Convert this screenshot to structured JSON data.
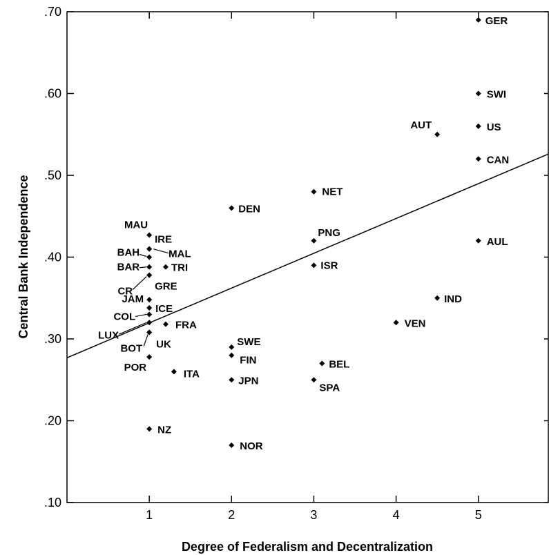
{
  "chart_data": {
    "type": "scatter",
    "xlabel": "Degree of Federalism and Decentralization",
    "ylabel": "Central Bank Independence",
    "xlim": [
      0,
      5.85
    ],
    "ylim": [
      0.1,
      0.7
    ],
    "xticks": [
      1,
      2,
      3,
      4,
      5
    ],
    "xtick_labels": [
      "1",
      "2",
      "3",
      "4",
      "5"
    ],
    "yticks": [
      0.1,
      0.2,
      0.3,
      0.4,
      0.5,
      0.6,
      0.7
    ],
    "ytick_labels": [
      ".10",
      ".20",
      ".30",
      ".40",
      ".50",
      ".60",
      ".70"
    ],
    "grid": false,
    "regression_line": {
      "x": [
        0,
        5.85
      ],
      "y": [
        0.277,
        0.526
      ]
    },
    "points": [
      {
        "label": "GER",
        "x": 5,
        "y": 0.69
      },
      {
        "label": "SWI",
        "x": 5,
        "y": 0.6
      },
      {
        "label": "US",
        "x": 5,
        "y": 0.56
      },
      {
        "label": "AUT",
        "x": 4.5,
        "y": 0.55
      },
      {
        "label": "CAN",
        "x": 5,
        "y": 0.52
      },
      {
        "label": "AUL",
        "x": 5,
        "y": 0.42
      },
      {
        "label": "IND",
        "x": 4.5,
        "y": 0.35
      },
      {
        "label": "VEN",
        "x": 4,
        "y": 0.32
      },
      {
        "label": "NET",
        "x": 3,
        "y": 0.48
      },
      {
        "label": "PNG",
        "x": 3,
        "y": 0.42
      },
      {
        "label": "ISR",
        "x": 3,
        "y": 0.39
      },
      {
        "label": "BEL",
        "x": 3.1,
        "y": 0.27
      },
      {
        "label": "SPA",
        "x": 3,
        "y": 0.25
      },
      {
        "label": "DEN",
        "x": 2,
        "y": 0.46
      },
      {
        "label": "SWE",
        "x": 2,
        "y": 0.29
      },
      {
        "label": "FIN",
        "x": 2,
        "y": 0.28
      },
      {
        "label": "JPN",
        "x": 2,
        "y": 0.25
      },
      {
        "label": "NOR",
        "x": 2,
        "y": 0.17
      },
      {
        "label": "MAU",
        "x": 1,
        "y": 0.427
      },
      {
        "label": "IRE",
        "x": 1,
        "y": 0.41
      },
      {
        "label": "MAL",
        "x": 1,
        "y": 0.41
      },
      {
        "label": "BAH",
        "x": 1,
        "y": 0.4
      },
      {
        "label": "BAR",
        "x": 1,
        "y": 0.388
      },
      {
        "label": "TRI",
        "x": 1.2,
        "y": 0.388
      },
      {
        "label": "CR",
        "x": 1,
        "y": 0.378
      },
      {
        "label": "GRE",
        "x": 1,
        "y": 0.378
      },
      {
        "label": "JAM",
        "x": 1,
        "y": 0.348
      },
      {
        "label": "ICE",
        "x": 1,
        "y": 0.338
      },
      {
        "label": "COL",
        "x": 1,
        "y": 0.33
      },
      {
        "label": "LUX",
        "x": 1,
        "y": 0.32
      },
      {
        "label": "FRA",
        "x": 1.2,
        "y": 0.318
      },
      {
        "label": "BOT",
        "x": 1,
        "y": 0.308
      },
      {
        "label": "UK",
        "x": 1,
        "y": 0.308
      },
      {
        "label": "POR",
        "x": 1,
        "y": 0.278
      },
      {
        "label": "ITA",
        "x": 1.3,
        "y": 0.26
      },
      {
        "label": "NZ",
        "x": 1,
        "y": 0.19
      }
    ]
  }
}
